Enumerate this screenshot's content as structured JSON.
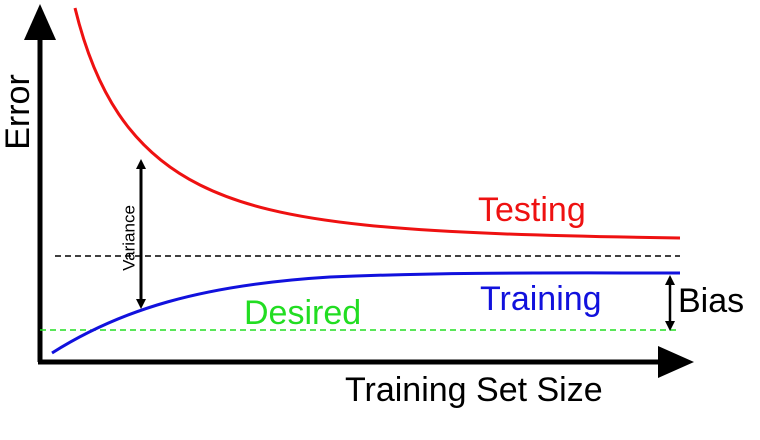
{
  "axes": {
    "y_label": "Error",
    "x_label": "Training Set Size"
  },
  "curves": {
    "testing": "Testing",
    "training": "Training",
    "desired": "Desired"
  },
  "annotations": {
    "variance": "Variance",
    "bias": "Bias"
  }
}
